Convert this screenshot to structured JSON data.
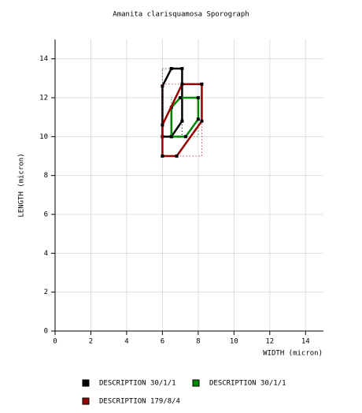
{
  "chart_data": {
    "type": "polygon",
    "title": "Amanita clarisquamosa Sporograph",
    "x_label": "WIDTH (micron)",
    "y_label": "LENGTH (micron)",
    "xlim": [
      0,
      15
    ],
    "xticks": [
      0,
      2,
      4,
      6,
      8,
      10,
      12,
      14
    ],
    "ylim": [
      0,
      15
    ],
    "yticks": [
      0,
      2,
      4,
      6,
      8,
      10,
      12,
      14
    ],
    "grid": true,
    "series": [
      {
        "name": "DESCRIPTION 30/1/1",
        "color": "#000000",
        "x": [
          6,
          6.5,
          7.1,
          7.1,
          6.5,
          6
        ],
        "values": [
          12.6,
          13.5,
          13.5,
          10.8,
          10,
          10
        ]
      },
      {
        "name": "DESCRIPTION 30/1/1",
        "color": "#008800",
        "x": [
          6.5,
          7,
          8,
          8,
          7.3,
          6.5
        ],
        "values": [
          11.5,
          12,
          12,
          10.9,
          10,
          10
        ]
      },
      {
        "name": "DESCRIPTION 179/8/4",
        "color": "#990000",
        "x": [
          6,
          7.1,
          8.2,
          8.2,
          6.8,
          6
        ],
        "values": [
          10.6,
          12.7,
          12.7,
          10.8,
          9,
          9
        ]
      }
    ]
  }
}
